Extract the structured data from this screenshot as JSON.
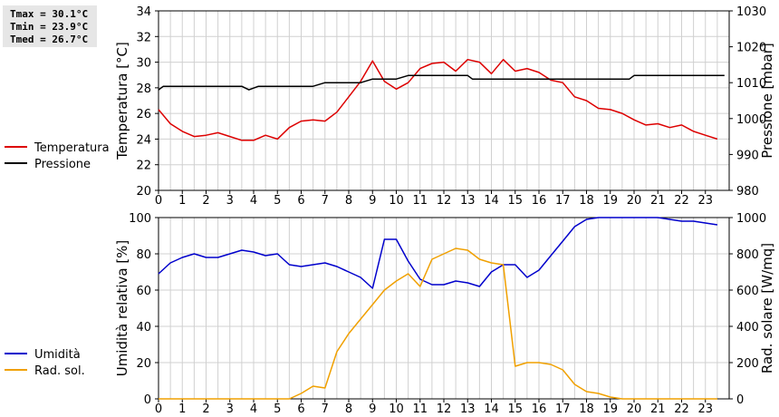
{
  "stats": {
    "tmax": "Tmax = 30.1°C",
    "tmin": "Tmin = 23.9°C",
    "tmed": "Tmed = 26.7°C"
  },
  "colors": {
    "red": "#dd0000",
    "black": "#000000",
    "blue": "#0000cc",
    "orange": "#f0a000",
    "grid": "#d0d0d0"
  },
  "chart_data": [
    {
      "type": "line",
      "grid": true,
      "legend": "left",
      "x_ticks": [
        "0",
        "1",
        "2",
        "3",
        "4",
        "5",
        "6",
        "7",
        "8",
        "9",
        "10",
        "11",
        "12",
        "13",
        "14",
        "15",
        "16",
        "17",
        "18",
        "19",
        "20",
        "21",
        "22",
        "23"
      ],
      "xlim": [
        0,
        24
      ],
      "y_left": {
        "label": "Temperatura [°C]",
        "lim": [
          20,
          34
        ],
        "ticks": [
          "20",
          "22",
          "24",
          "26",
          "28",
          "30",
          "32",
          "34"
        ]
      },
      "y_right": {
        "label": "Pressione [mbar]",
        "lim": [
          980,
          1030
        ],
        "ticks": [
          "980",
          "990",
          "1000",
          "1010",
          "1020",
          "1030"
        ]
      },
      "series": [
        {
          "name": "Temperatura",
          "color": "red",
          "axis": "left",
          "x": [
            0,
            0.5,
            1,
            1.5,
            2,
            2.5,
            3,
            3.5,
            4,
            4.5,
            5,
            5.5,
            6,
            6.5,
            7,
            7.5,
            8,
            8.5,
            9,
            9.5,
            10,
            10.5,
            11,
            11.5,
            12,
            12.5,
            13,
            13.5,
            14,
            14.5,
            15,
            15.5,
            16,
            16.5,
            17,
            17.5,
            18,
            18.5,
            19,
            19.5,
            20,
            20.5,
            21,
            21.5,
            22,
            22.5,
            23,
            23.5
          ],
          "y": [
            26.3,
            25.2,
            24.6,
            24.2,
            24.3,
            24.5,
            24.2,
            23.9,
            23.9,
            24.3,
            24.0,
            24.9,
            25.4,
            25.5,
            25.4,
            26.1,
            27.3,
            28.5,
            30.1,
            28.5,
            27.9,
            28.4,
            29.5,
            29.9,
            30.0,
            29.3,
            30.2,
            30.0,
            29.1,
            30.2,
            29.3,
            29.5,
            29.2,
            28.6,
            28.4,
            27.3,
            27.0,
            26.4,
            26.3,
            26.0,
            25.5,
            25.1,
            25.2,
            24.9,
            25.1,
            24.6,
            24.3,
            24.0
          ]
        },
        {
          "name": "Pressione",
          "color": "black",
          "axis": "right",
          "x": [
            0,
            0.2,
            3.5,
            3.8,
            4.2,
            6.5,
            7,
            8.5,
            9,
            10,
            10.5,
            11,
            13,
            13.2,
            15,
            15.5,
            16,
            19.5,
            19.8,
            20,
            23.8
          ],
          "y": [
            1008,
            1009,
            1009,
            1008,
            1009,
            1009,
            1010,
            1010,
            1011,
            1011,
            1012,
            1012,
            1012,
            1011,
            1011,
            1011,
            1011,
            1011,
            1011,
            1012,
            1012
          ]
        }
      ]
    },
    {
      "type": "line",
      "grid": true,
      "legend": "left",
      "x_ticks": [
        "0",
        "1",
        "2",
        "3",
        "4",
        "5",
        "6",
        "7",
        "8",
        "9",
        "10",
        "11",
        "12",
        "13",
        "14",
        "15",
        "16",
        "17",
        "18",
        "19",
        "20",
        "21",
        "22",
        "23"
      ],
      "xlim": [
        0,
        24
      ],
      "y_left": {
        "label": "Umidità relativa [%]",
        "lim": [
          0,
          100
        ],
        "ticks": [
          "0",
          "20",
          "40",
          "60",
          "80",
          "100"
        ]
      },
      "y_right": {
        "label": "Rad. solare [W/mq]",
        "lim": [
          0,
          1000
        ],
        "ticks": [
          "0",
          "200",
          "400",
          "600",
          "800",
          "1000"
        ]
      },
      "series": [
        {
          "name": "Umidità",
          "color": "blue",
          "axis": "left",
          "x": [
            0,
            0.5,
            1,
            1.5,
            2,
            2.5,
            3,
            3.5,
            4,
            4.5,
            5,
            5.5,
            6,
            6.5,
            7,
            7.5,
            8,
            8.5,
            9,
            9.5,
            10,
            10.5,
            11,
            11.5,
            12,
            12.5,
            13,
            13.5,
            14,
            14.5,
            15,
            15.5,
            16,
            16.5,
            17,
            17.5,
            18,
            18.5,
            19,
            19.5,
            20,
            20.5,
            21,
            21.5,
            22,
            22.5,
            23,
            23.5
          ],
          "y": [
            69,
            75,
            78,
            80,
            78,
            78,
            80,
            82,
            81,
            79,
            80,
            74,
            73,
            74,
            75,
            73,
            70,
            67,
            61,
            88,
            88,
            76,
            66,
            63,
            63,
            65,
            64,
            62,
            70,
            74,
            74,
            67,
            71,
            79,
            87,
            95,
            99,
            100,
            100,
            100,
            100,
            100,
            100,
            99,
            98,
            98,
            97,
            96
          ]
        },
        {
          "name": "Rad. sol.",
          "color": "orange",
          "axis": "right",
          "x": [
            0,
            0.5,
            1,
            1.5,
            2,
            2.5,
            3,
            3.5,
            4,
            4.5,
            5,
            5.5,
            6,
            6.5,
            7,
            7.5,
            8,
            8.5,
            9,
            9.5,
            10,
            10.5,
            11,
            11.5,
            12,
            12.5,
            13,
            13.5,
            14,
            14.5,
            15,
            15.5,
            16,
            16.5,
            17,
            17.5,
            18,
            18.5,
            19,
            19.5,
            20,
            20.5,
            21,
            21.5,
            22,
            22.5,
            23,
            23.5
          ],
          "y": [
            0,
            0,
            0,
            0,
            0,
            0,
            0,
            0,
            0,
            0,
            0,
            0,
            30,
            70,
            60,
            260,
            360,
            440,
            520,
            600,
            650,
            690,
            620,
            770,
            800,
            830,
            820,
            770,
            750,
            740,
            180,
            200,
            200,
            190,
            160,
            80,
            40,
            30,
            10,
            0,
            0,
            0,
            0,
            0,
            0,
            0,
            0,
            0
          ]
        }
      ]
    }
  ]
}
